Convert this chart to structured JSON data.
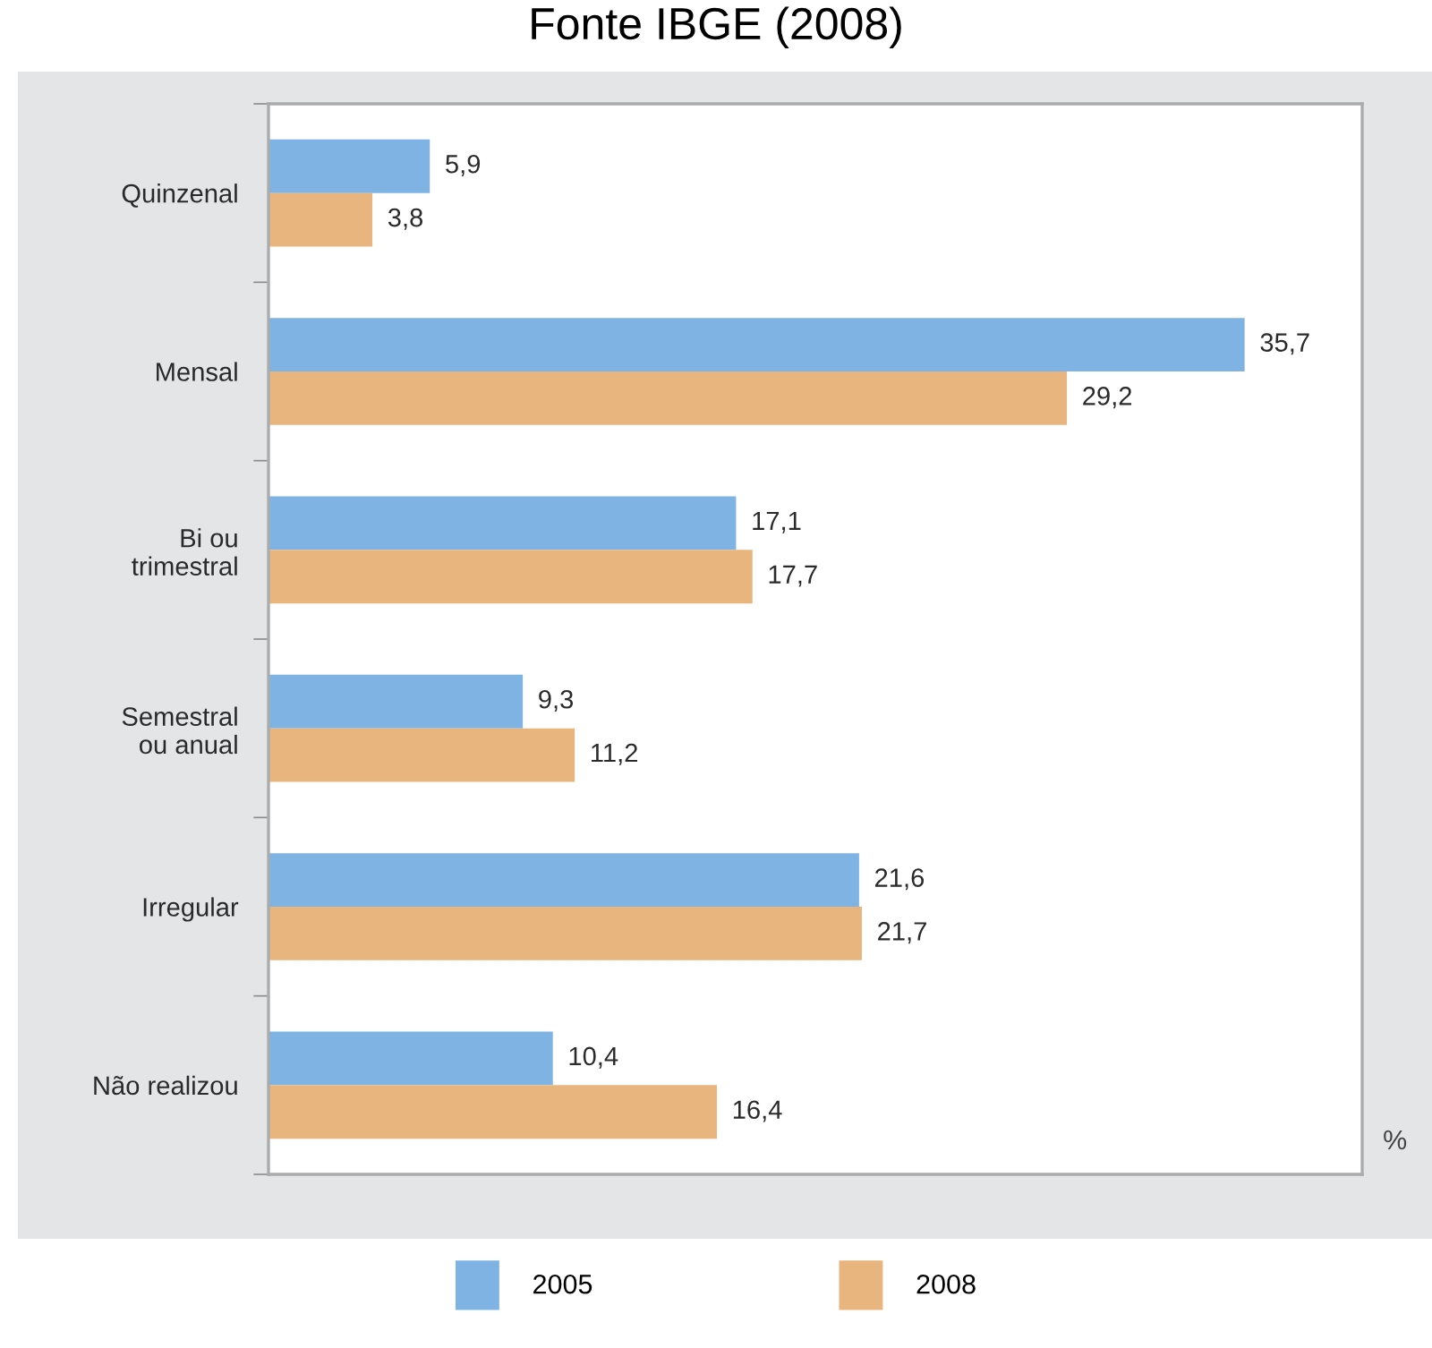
{
  "chart_data": {
    "type": "bar",
    "orientation": "horizontal",
    "title": "Fonte IBGE (2008)",
    "xlabel": "%",
    "categories": [
      "Quinzenal",
      "Mensal",
      "Bi ou\ntrimestral",
      "Semestral\nou anual",
      "Irregular",
      "Não realizou"
    ],
    "series": [
      {
        "name": "2005",
        "color": "#7fb3e4",
        "values": [
          5.9,
          35.7,
          17.1,
          9.3,
          21.6,
          10.4
        ],
        "value_labels": [
          "5,9",
          "35,7",
          "17,1",
          "9,3",
          "21,6",
          "10,4"
        ]
      },
      {
        "name": "2008",
        "color": "#e8b57f",
        "values": [
          3.8,
          29.2,
          17.7,
          11.2,
          21.7,
          16.4
        ],
        "value_labels": [
          "3,8",
          "29,2",
          "17,7",
          "11,2",
          "21,7",
          "16,4"
        ]
      }
    ],
    "xlim": [
      0,
      40
    ],
    "tick_labels": "y",
    "legend": "bottom"
  }
}
